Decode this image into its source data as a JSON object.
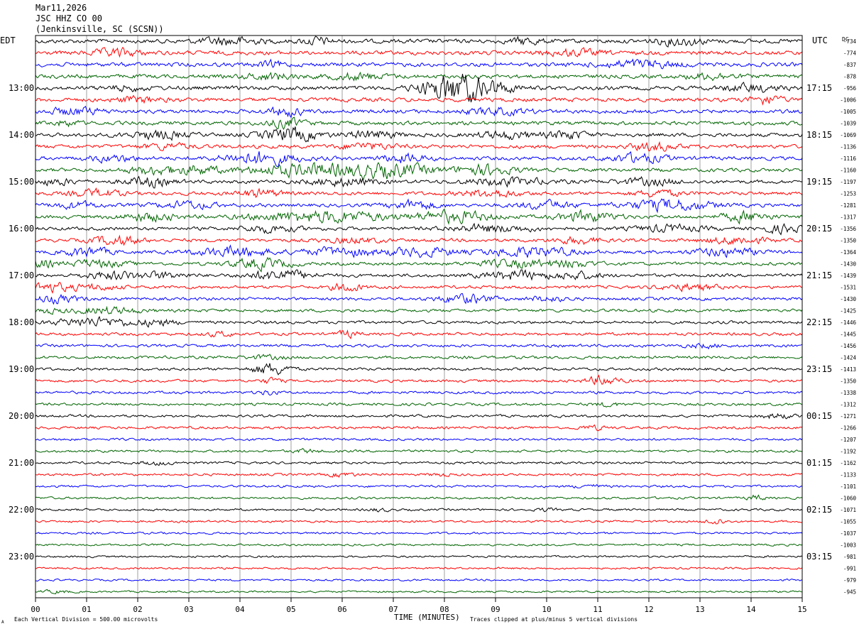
{
  "header": {
    "date": "Mar11,2026",
    "station": "JSC HHZ CO 00",
    "location": "(Jenkinsville, SC (SCSN))"
  },
  "left_axis_label": "EDT",
  "right_axis_label": "UTC",
  "dc_label": "DC",
  "footer": {
    "scale_note": "Each Vertical Division =  500.00 microvolts",
    "clip_note": "Traces clipped at plus/minus 5 vertical divisions",
    "corner_mark": "A"
  },
  "chart_data": {
    "type": "line",
    "xlabel": "TIME (MINUTES)",
    "xlim": [
      0,
      15
    ],
    "x_ticks": [
      "00",
      "01",
      "02",
      "03",
      "04",
      "05",
      "06",
      "07",
      "08",
      "09",
      "10",
      "11",
      "12",
      "13",
      "14",
      "15"
    ],
    "trace_colors": [
      "#000000",
      "#ff0000",
      "#0000ff",
      "#006400"
    ],
    "left_hour_labels": [
      "13:00",
      "14:00",
      "15:00",
      "16:00",
      "17:00",
      "18:00",
      "19:00",
      "20:00",
      "21:00",
      "22:00",
      "23:00"
    ],
    "right_hour_labels": [
      "17:15",
      "18:15",
      "19:15",
      "20:15",
      "21:15",
      "22:15",
      "23:15",
      "00:15",
      "01:15",
      "02:15",
      "03:15"
    ],
    "dc_offsets": [
      "-734",
      "-774",
      "-837",
      "-878",
      "-956",
      "-1006",
      "-1005",
      "-1039",
      "-1069",
      "-1136",
      "-1116",
      "-1160",
      "-1197",
      "-1253",
      "-1281",
      "-1317",
      "-1356",
      "-1350",
      "-1364",
      "-1430",
      "-1439",
      "-1531",
      "-1430",
      "-1425",
      "-1446",
      "-1445",
      "-1456",
      "-1424",
      "-1413",
      "-1350",
      "-1338",
      "-1312",
      "-1271",
      "-1266",
      "-1207",
      "-1192",
      "-1162",
      "-1133",
      "-1101",
      "-1060",
      "-1071",
      "-1055",
      "-1037",
      "-1003",
      "-981",
      "-991",
      "-979",
      "-945"
    ],
    "trace_activity": [
      [
        [
          3.8,
          0.6,
          1.8
        ],
        [
          5.5,
          0.3,
          1.6
        ],
        [
          9.6,
          0.3,
          1.6
        ],
        [
          12.6,
          0.5,
          1.8
        ]
      ],
      [
        [
          1.6,
          0.5,
          1.6
        ],
        [
          10.5,
          0.6,
          1.3
        ]
      ],
      [
        [
          11.8,
          0.8,
          1.8
        ],
        [
          4.6,
          0.3,
          1.3
        ]
      ],
      [
        [
          4.6,
          0.5,
          1.6
        ],
        [
          6.3,
          0.6,
          1.4
        ],
        [
          13.2,
          0.5,
          1.4
        ]
      ],
      [
        [
          8.25,
          0.7,
          7.0
        ],
        [
          9.0,
          0.5,
          1.6
        ],
        [
          1.8,
          0.4,
          1.2
        ],
        [
          14.0,
          0.6,
          1.6
        ]
      ],
      [
        [
          14.3,
          0.3,
          2.2
        ],
        [
          2.0,
          0.5,
          1.3
        ]
      ],
      [
        [
          4.9,
          0.4,
          2.0
        ],
        [
          0.8,
          0.6,
          1.6
        ],
        [
          9.0,
          0.7,
          1.5
        ]
      ],
      [
        [
          4.9,
          0.4,
          2.2
        ],
        [
          0.6,
          0.3,
          1.3
        ]
      ],
      [
        [
          5.0,
          0.6,
          3.2
        ],
        [
          2.4,
          0.6,
          2.0
        ],
        [
          6.6,
          0.5,
          2.0
        ],
        [
          9.2,
          0.6,
          1.8
        ],
        [
          10.4,
          0.4,
          2.0
        ]
      ],
      [
        [
          12.1,
          0.5,
          1.8
        ],
        [
          6.5,
          0.6,
          1.5
        ],
        [
          2.6,
          0.5,
          1.4
        ]
      ],
      [
        [
          4.4,
          0.8,
          3.2
        ],
        [
          11.8,
          0.6,
          2.2
        ],
        [
          7.2,
          0.5,
          2.0
        ],
        [
          1.5,
          0.5,
          1.6
        ]
      ],
      [
        [
          5.4,
          1.4,
          3.2
        ],
        [
          7.0,
          0.8,
          3.0
        ],
        [
          8.8,
          0.6,
          2.6
        ],
        [
          2.4,
          0.6,
          2.2
        ],
        [
          3.2,
          0.4,
          1.8
        ]
      ],
      [
        [
          2.2,
          0.5,
          2.4
        ],
        [
          6.0,
          0.7,
          2.0
        ],
        [
          9.2,
          0.9,
          1.8
        ],
        [
          12.0,
          0.6,
          1.8
        ],
        [
          0.4,
          0.4,
          1.6
        ]
      ],
      [
        [
          1.2,
          0.5,
          1.8
        ],
        [
          4.4,
          0.5,
          1.8
        ],
        [
          8.9,
          0.6,
          2.0
        ],
        [
          12.2,
          0.5,
          1.6
        ]
      ],
      [
        [
          12.4,
          0.9,
          3.0
        ],
        [
          7.4,
          0.5,
          2.4
        ],
        [
          10.0,
          0.6,
          2.0
        ],
        [
          3.0,
          0.6,
          1.8
        ],
        [
          0.8,
          0.5,
          1.6
        ]
      ],
      [
        [
          5.6,
          1.4,
          3.2
        ],
        [
          8.2,
          0.8,
          3.0
        ],
        [
          10.8,
          0.6,
          2.8
        ],
        [
          13.9,
          0.5,
          2.8
        ],
        [
          2.2,
          0.6,
          2.2
        ]
      ],
      [
        [
          8.9,
          0.9,
          2.0
        ],
        [
          12.4,
          0.7,
          1.8
        ],
        [
          4.6,
          0.6,
          1.8
        ],
        [
          14.6,
          0.4,
          2.2
        ]
      ],
      [
        [
          1.6,
          0.5,
          2.6
        ],
        [
          10.6,
          0.5,
          1.8
        ],
        [
          13.7,
          0.6,
          2.2
        ],
        [
          6.2,
          0.6,
          1.4
        ]
      ],
      [
        [
          1.0,
          0.5,
          2.6
        ],
        [
          3.9,
          0.8,
          2.8
        ],
        [
          6.0,
          0.8,
          2.4
        ],
        [
          7.6,
          0.7,
          2.4
        ],
        [
          9.7,
          0.9,
          2.8
        ],
        [
          13.5,
          0.7,
          2.4
        ]
      ],
      [
        [
          4.4,
          0.6,
          3.0
        ],
        [
          0.1,
          0.3,
          2.2
        ],
        [
          9.4,
          0.8,
          2.2
        ],
        [
          10.5,
          0.5,
          1.8
        ],
        [
          1.2,
          0.6,
          2.0
        ]
      ],
      [
        [
          4.8,
          0.7,
          3.0
        ],
        [
          9.4,
          0.7,
          2.6
        ],
        [
          10.6,
          0.5,
          2.0
        ],
        [
          1.5,
          0.6,
          2.2
        ],
        [
          2.5,
          0.5,
          1.8
        ]
      ],
      [
        [
          0.2,
          0.5,
          3.0
        ],
        [
          6.1,
          0.3,
          2.6
        ],
        [
          12.8,
          0.6,
          1.8
        ],
        [
          1.2,
          0.5,
          1.6
        ]
      ],
      [
        [
          8.4,
          0.6,
          2.6
        ],
        [
          0.4,
          0.5,
          2.2
        ],
        [
          10.0,
          0.4,
          1.6
        ]
      ],
      [
        [
          1.4,
          0.7,
          2.0
        ],
        [
          0.2,
          0.3,
          1.4
        ]
      ],
      [
        [
          1.2,
          0.9,
          2.6
        ],
        [
          2.4,
          0.4,
          1.6
        ]
      ],
      [
        [
          6.1,
          0.2,
          2.4
        ],
        [
          3.6,
          0.3,
          1.3
        ]
      ],
      [
        [
          13.1,
          0.4,
          1.2
        ]
      ],
      [
        [
          4.5,
          0.4,
          1.2
        ]
      ],
      [
        [
          4.6,
          0.4,
          4.0
        ]
      ],
      [
        [
          11.1,
          0.35,
          3.2
        ],
        [
          4.6,
          0.2,
          1.8
        ]
      ],
      [
        [
          4.55,
          0.2,
          1.6
        ]
      ],
      [
        [
          11.2,
          0.3,
          1.2
        ]
      ],
      [
        [
          14.5,
          0.3,
          1.8
        ]
      ],
      [
        [
          10.9,
          0.3,
          1.4
        ]
      ],
      [],
      [
        [
          5.3,
          0.3,
          1.2
        ]
      ],
      [
        [
          2.4,
          0.4,
          1.2
        ]
      ],
      [
        [
          6.0,
          0.3,
          1.6
        ],
        [
          7.9,
          0.2,
          1.3
        ]
      ],
      [
        [
          10.8,
          0.3,
          1.2
        ]
      ],
      [
        [
          14.1,
          0.2,
          2.0
        ]
      ],
      [
        [
          6.7,
          0.2,
          1.4
        ],
        [
          10.0,
          0.2,
          1.2
        ]
      ],
      [
        [
          13.3,
          0.2,
          3.0
        ]
      ],
      [],
      [],
      [],
      [],
      [],
      [
        [
          0.4,
          0.3,
          1.2
        ]
      ]
    ]
  }
}
